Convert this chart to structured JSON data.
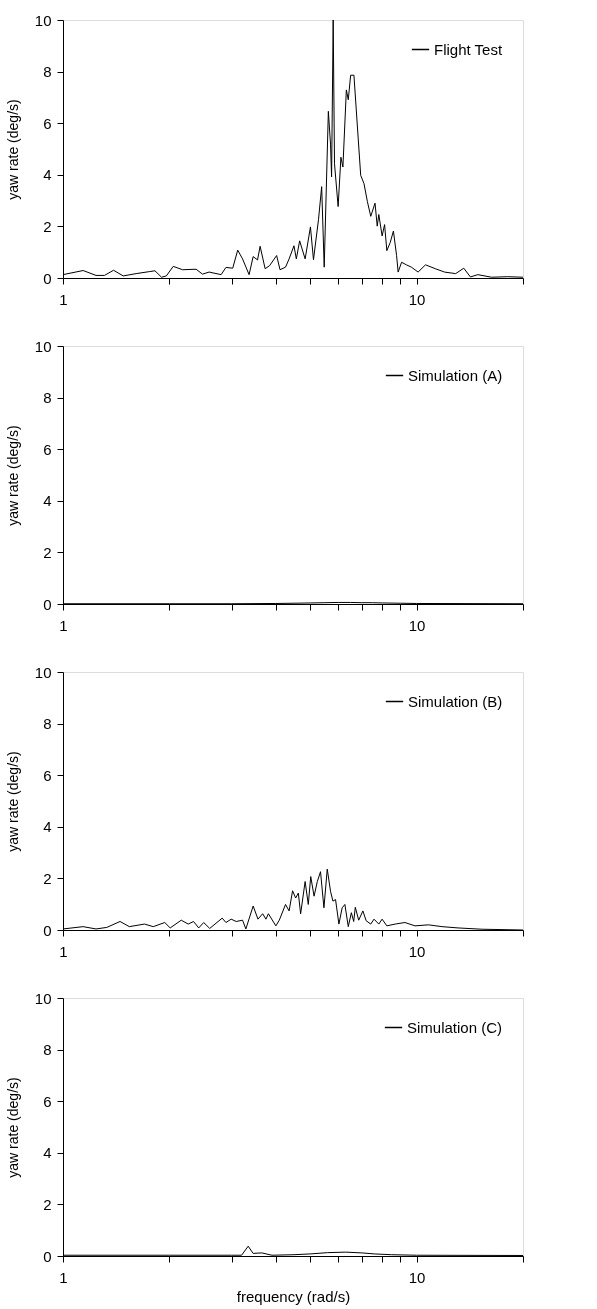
{
  "chart_data": [
    {
      "type": "line",
      "ylabel": "yaw rate (deg/s)",
      "log": "x",
      "legend": "top right",
      "grid": false,
      "marker": "none",
      "line_style": "solid",
      "xlim": [
        1,
        20
      ],
      "xticks": [
        1,
        {
          "value": 2,
          "label": null
        },
        {
          "value": 3,
          "label": null
        },
        {
          "value": 4,
          "label": null
        },
        {
          "value": 5,
          "label": null
        },
        {
          "value": 6,
          "label": null
        },
        {
          "value": 7,
          "label": null
        },
        {
          "value": 8,
          "label": null
        },
        {
          "value": 9,
          "label": null
        },
        10,
        {
          "value": 20,
          "label": null
        }
      ],
      "ylim": [
        0,
        10
      ],
      "yticks": [
        0,
        2,
        4,
        6,
        8,
        10
      ],
      "series": [
        {
          "name": "Flight Test",
          "color": "#000000",
          "x": [
            1,
            1.14,
            1.24,
            1.31,
            1.39,
            1.48,
            1.61,
            1.76,
            1.82,
            1.9,
            1.96,
            2.05,
            2.18,
            2.38,
            2.48,
            2.59,
            2.8,
            2.89,
            3.02,
            3.12,
            3.22,
            3.36,
            3.45,
            3.55,
            3.61,
            3.73,
            3.84,
            4.02,
            4.11,
            4.26,
            4.36,
            4.5,
            4.57,
            4.67,
            4.84,
            5.01,
            5.11,
            5.28,
            5.39,
            5.48,
            5.63,
            5.71,
            5.75,
            5.81,
            5.86,
            6.0,
            6.11,
            6.19,
            6.33,
            6.41,
            6.51,
            6.65,
            6.95,
            7.1,
            7.26,
            7.42,
            7.63,
            7.74,
            7.82,
            7.99,
            8.12,
            8.24,
            8.42,
            8.6,
            8.78,
            8.87,
            9.07,
            9.36,
            9.67,
            10.1,
            10.6,
            11.3,
            12.0,
            12.9,
            13.6,
            14.2,
            14.9,
            16.3,
            18.1,
            20
          ],
          "values": [
            0.13,
            0.29,
            0.1,
            0.1,
            0.3,
            0.08,
            0.17,
            0.25,
            0.28,
            0.03,
            0.08,
            0.45,
            0.32,
            0.34,
            0.15,
            0.23,
            0.13,
            0.41,
            0.38,
            1.08,
            0.74,
            0.13,
            0.83,
            0.7,
            1.23,
            0.36,
            0.48,
            0.87,
            0.32,
            0.42,
            0.74,
            1.25,
            0.74,
            1.44,
            0.74,
            1.98,
            0.71,
            2.26,
            3.54,
            0.42,
            6.46,
            5.19,
            3.92,
            10,
            4.43,
            2.77,
            4.68,
            4.3,
            7.29,
            6.91,
            7.86,
            7.86,
            3.98,
            3.66,
            2.96,
            2.39,
            2.9,
            2.01,
            2.46,
            1.63,
            2.07,
            1.06,
            1.37,
            1.82,
            0.87,
            0.23,
            0.61,
            0.51,
            0.42,
            0.23,
            0.51,
            0.36,
            0.23,
            0.17,
            0.38,
            0.04,
            0.13,
            0.03,
            0.05,
            0.03
          ]
        }
      ]
    },
    {
      "type": "line",
      "ylabel": "yaw rate (deg/s)",
      "log": "x",
      "legend": "top right",
      "grid": false,
      "marker": "none",
      "line_style": "solid",
      "xlim": [
        1,
        20
      ],
      "xticks": [
        1,
        {
          "value": 2,
          "label": null
        },
        {
          "value": 3,
          "label": null
        },
        {
          "value": 4,
          "label": null
        },
        {
          "value": 5,
          "label": null
        },
        {
          "value": 6,
          "label": null
        },
        {
          "value": 7,
          "label": null
        },
        {
          "value": 8,
          "label": null
        },
        {
          "value": 9,
          "label": null
        },
        10,
        {
          "value": 20,
          "label": null
        }
      ],
      "ylim": [
        0,
        10
      ],
      "yticks": [
        0,
        2,
        4,
        6,
        8,
        10
      ],
      "series": [
        {
          "name": "Simulation (A)",
          "color": "#000000",
          "x": [
            1,
            2,
            3,
            4,
            4.5,
            5,
            5.5,
            6,
            6.5,
            7,
            7.5,
            8,
            9,
            10,
            20
          ],
          "values": [
            0.01,
            0.01,
            0.01,
            0.02,
            0.03,
            0.04,
            0.05,
            0.06,
            0.06,
            0.05,
            0.05,
            0.04,
            0.03,
            0.02,
            0.01
          ]
        }
      ]
    },
    {
      "type": "line",
      "ylabel": "yaw rate (deg/s)",
      "log": "x",
      "legend": "top right",
      "grid": false,
      "marker": "none",
      "line_style": "solid",
      "xlim": [
        1,
        20
      ],
      "xticks": [
        1,
        {
          "value": 2,
          "label": null
        },
        {
          "value": 3,
          "label": null
        },
        {
          "value": 4,
          "label": null
        },
        {
          "value": 5,
          "label": null
        },
        {
          "value": 6,
          "label": null
        },
        {
          "value": 7,
          "label": null
        },
        {
          "value": 8,
          "label": null
        },
        {
          "value": 9,
          "label": null
        },
        10,
        {
          "value": 20,
          "label": null
        }
      ],
      "ylim": [
        0,
        10
      ],
      "yticks": [
        0,
        2,
        4,
        6,
        8,
        10
      ],
      "series": [
        {
          "name": "Simulation (B)",
          "color": "#000000",
          "x": [
            1,
            1.14,
            1.24,
            1.33,
            1.45,
            1.54,
            1.7,
            1.8,
            1.94,
            2.01,
            2.16,
            2.26,
            2.34,
            2.42,
            2.5,
            2.6,
            2.82,
            2.89,
            2.99,
            3.09,
            3.22,
            3.29,
            3.45,
            3.56,
            3.67,
            3.75,
            3.81,
            4.0,
            4.09,
            4.26,
            4.36,
            4.46,
            4.55,
            4.63,
            4.7,
            4.84,
            4.94,
            5.02,
            5.13,
            5.24,
            5.35,
            5.47,
            5.59,
            5.71,
            5.8,
            5.9,
            6.03,
            6.16,
            6.27,
            6.41,
            6.54,
            6.64,
            6.71,
            6.86,
            7.05,
            7.2,
            7.42,
            7.58,
            7.82,
            7.99,
            8.24,
            8.7,
            9.27,
            9.9,
            10.8,
            11.8,
            13.1,
            15.3,
            20
          ],
          "values": [
            0.04,
            0.13,
            0.04,
            0.1,
            0.33,
            0.13,
            0.23,
            0.13,
            0.29,
            0.08,
            0.38,
            0.23,
            0.33,
            0.08,
            0.29,
            0.06,
            0.46,
            0.29,
            0.42,
            0.33,
            0.38,
            0.04,
            0.93,
            0.42,
            0.63,
            0.42,
            0.63,
            0.16,
            0.38,
            0.99,
            0.74,
            1.52,
            1.24,
            1.43,
            0.63,
            1.88,
            0.99,
            2.07,
            1.31,
            1.88,
            2.26,
            0.86,
            2.36,
            1.5,
            1.12,
            1.18,
            0.23,
            0.86,
            0.99,
            0.13,
            0.67,
            0.33,
            0.88,
            0.38,
            0.74,
            0.36,
            0.23,
            0.42,
            0.23,
            0.42,
            0.16,
            0.23,
            0.29,
            0.16,
            0.2,
            0.13,
            0.08,
            0.03,
            0
          ]
        }
      ]
    },
    {
      "type": "line",
      "ylabel": "yaw rate (deg/s)",
      "xlabel": "frequency (rad/s)",
      "log": "x",
      "legend": "top right",
      "grid": false,
      "marker": "none",
      "line_style": "solid",
      "xlim": [
        1,
        20
      ],
      "xticks": [
        1,
        {
          "value": 2,
          "label": null
        },
        {
          "value": 3,
          "label": null
        },
        {
          "value": 4,
          "label": null
        },
        {
          "value": 5,
          "label": null
        },
        {
          "value": 6,
          "label": null
        },
        {
          "value": 7,
          "label": null
        },
        {
          "value": 8,
          "label": null
        },
        {
          "value": 9,
          "label": null
        },
        10,
        {
          "value": 20,
          "label": null
        }
      ],
      "ylim": [
        0,
        10
      ],
      "yticks": [
        0,
        2,
        4,
        6,
        8,
        10
      ],
      "series": [
        {
          "name": "Simulation (C)",
          "color": "#000000",
          "x": [
            1,
            2,
            3,
            3.2,
            3.34,
            3.45,
            3.65,
            3.9,
            4.5,
            5,
            5.6,
            6.3,
            7,
            7.6,
            8.5,
            10,
            20
          ],
          "values": [
            0.03,
            0.03,
            0.03,
            0.03,
            0.38,
            0.1,
            0.12,
            0.03,
            0.05,
            0.08,
            0.13,
            0.15,
            0.12,
            0.08,
            0.05,
            0.03,
            0.02
          ]
        }
      ]
    }
  ]
}
